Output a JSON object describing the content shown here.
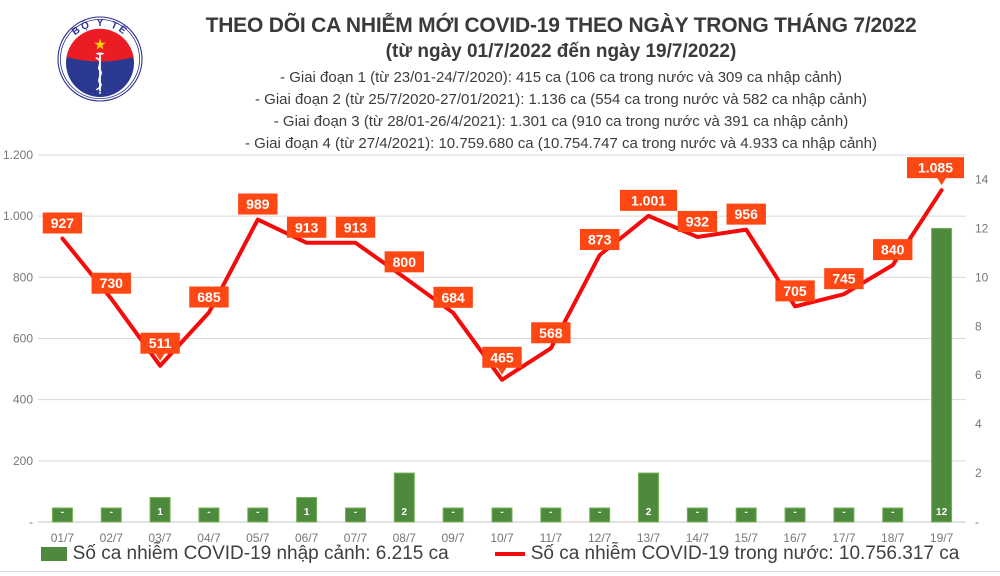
{
  "logo": {
    "top_text": "BỘ Y TẾ",
    "bottom_text": "MINISTRY OF HEALTH"
  },
  "header": {
    "title": "THEO DÕI CA NHIỄM MỚI COVID-19 THEO NGÀY TRONG THÁNG 7/2022",
    "subtitle": "(từ ngày 01/7/2022 đến ngày 19/7/2022)",
    "stages": [
      "- Giai đoạn 1 (từ 23/01-24/7/2020): 415 ca (106 ca trong nước và 309 ca nhập cảnh)",
      "- Giai đoạn 2 (từ 25/7/2020-27/01/2021): 1.136 ca (554 ca trong nước và 582 ca nhập cảnh)",
      "- Giai đoạn 3 (từ 28/01-26/4/2021): 1.301 ca (910 ca trong nước và 391 ca nhập cảnh)",
      "- Giai đoạn 4 (từ 27/4/2021): 10.759.680 ca (10.754.747 ca trong nước và 4.933 ca nhập cảnh)"
    ]
  },
  "chart_data": {
    "type": "combo",
    "categories": [
      "01/7",
      "02/7",
      "03/7",
      "04/7",
      "05/7",
      "06/7",
      "07/7",
      "08/7",
      "09/7",
      "10/7",
      "11/7",
      "12/7",
      "13/7",
      "14/7",
      "15/7",
      "16/7",
      "17/7",
      "18/7",
      "19/7"
    ],
    "series": [
      {
        "name": "Số ca nhiễm COVID-19 nhập cảnh",
        "type": "bar",
        "axis": "right",
        "values": [
          0,
          0,
          1,
          0,
          0,
          1,
          0,
          2,
          0,
          0,
          0,
          0,
          2,
          0,
          0,
          0,
          0,
          0,
          12
        ],
        "labels": [
          "-",
          "-",
          "1",
          "-",
          "-",
          "1",
          "-",
          "2",
          "-",
          "-",
          "-",
          "-",
          "2",
          "-",
          "-",
          "-",
          "-",
          "-",
          "12"
        ]
      },
      {
        "name": "Số ca nhiễm COVID-19 trong nước",
        "type": "line",
        "axis": "left",
        "values": [
          927,
          730,
          511,
          685,
          989,
          913,
          913,
          800,
          684,
          465,
          568,
          873,
          1001,
          932,
          956,
          705,
          745,
          840,
          1085
        ],
        "labels": [
          "927",
          "730",
          "511",
          "685",
          "989",
          "913",
          "913",
          "800",
          "684",
          "465",
          "568",
          "873",
          "1.001",
          "932",
          "956",
          "705",
          "745",
          "840",
          "1.085"
        ]
      }
    ],
    "left_axis": {
      "ticks": [
        "-",
        "200",
        "400",
        "600",
        "800",
        "1.000",
        "1.200"
      ],
      "min": 0,
      "max": 1200,
      "step": 200
    },
    "right_axis": {
      "ticks": [
        "-",
        "2",
        "4",
        "6",
        "8",
        "10",
        "12",
        "14"
      ],
      "min": 0,
      "max": 15,
      "step": 2
    },
    "grid": true,
    "legend_position": "bottom",
    "callout_indices": [
      2,
      9,
      18
    ],
    "colors": {
      "line": "#f40b0b",
      "label_bg": "#ff4713",
      "label_text": "#ffffff",
      "bar_fill": "#4e8a3d",
      "bar_stroke": "#76b253",
      "grid": "#d9d9d9",
      "axis_text": "#767676",
      "baseline": "#c6c6c6"
    }
  },
  "legend": [
    {
      "label": "Số ca nhiễm COVID-19 nhập cảnh: 6.215 ca",
      "marker": "bar",
      "color": "#4e8a3d"
    },
    {
      "label": "Số ca nhiễm COVID-19 trong nước: 10.756.317 ca",
      "marker": "line",
      "color": "#f40b0b"
    }
  ]
}
